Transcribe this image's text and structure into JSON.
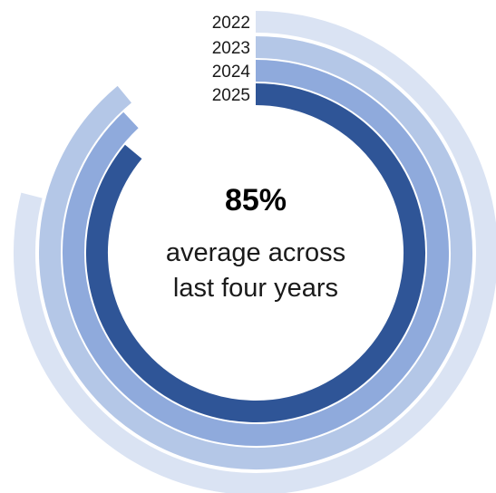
{
  "chart_data": {
    "type": "radial-bar",
    "series": [
      {
        "name": "2022",
        "value": 79,
        "color": "#dae3f3"
      },
      {
        "name": "2023",
        "value": 89,
        "color": "#b4c7e7"
      },
      {
        "name": "2024",
        "value": 88,
        "color": "#8faadc"
      },
      {
        "name": "2025",
        "value": 86,
        "color": "#2f5597"
      }
    ],
    "center": {
      "value": "85%",
      "caption_line1": "average across",
      "caption_line2": "last four years"
    }
  }
}
